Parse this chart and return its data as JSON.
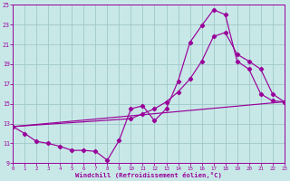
{
  "xlabel": "Windchill (Refroidissement éolien,°C)",
  "bg_color": "#c8e8e8",
  "grid_color": "#a0c8c8",
  "line_color": "#990099",
  "xlim": [
    0,
    23
  ],
  "ylim": [
    9,
    25
  ],
  "xticks": [
    0,
    1,
    2,
    3,
    4,
    5,
    6,
    7,
    8,
    9,
    10,
    11,
    12,
    13,
    14,
    15,
    16,
    17,
    18,
    19,
    20,
    21,
    22,
    23
  ],
  "yticks": [
    9,
    11,
    13,
    15,
    17,
    19,
    21,
    23,
    25
  ],
  "line1_x": [
    0,
    1,
    2,
    3,
    4,
    5,
    6,
    7,
    8,
    9,
    10,
    11,
    12,
    13,
    14,
    15,
    16,
    17,
    18,
    19,
    20,
    21,
    22,
    23
  ],
  "line1_y": [
    12.7,
    12.0,
    11.2,
    11.0,
    10.7,
    10.3,
    10.3,
    10.2,
    9.3,
    11.3,
    14.5,
    14.8,
    13.3,
    14.5,
    17.3,
    21.2,
    22.9,
    24.5,
    24.0,
    19.3,
    18.5,
    16.0,
    15.3,
    15.2
  ],
  "line2_x": [
    0,
    23
  ],
  "line2_y": [
    12.7,
    15.2
  ],
  "line3_x": [
    0,
    10,
    11,
    12,
    13,
    14,
    15,
    16,
    17,
    18,
    19,
    20,
    21,
    22,
    23
  ],
  "line3_y": [
    12.7,
    13.5,
    14.0,
    14.5,
    15.2,
    16.2,
    17.5,
    19.3,
    21.8,
    22.2,
    20.0,
    19.3,
    18.5,
    16.0,
    15.2
  ]
}
